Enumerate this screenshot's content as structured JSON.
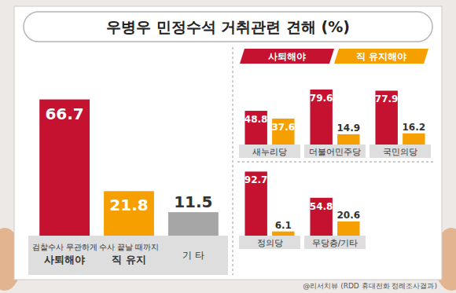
{
  "title": "우병우 민정수석 거취관련 견해 (%)",
  "source": "@리서치뷰 (RDD 휴대전화 정례조사결과)",
  "chart_data": [
    {
      "type": "bar",
      "categories": [
        "검찰수사 무관하게\n사퇴해야",
        "수사 끝날 때까지\n직 유지",
        "기 타"
      ],
      "values": [
        66.7,
        21.8,
        11.5
      ],
      "colors": [
        "#c41230",
        "#f5a000",
        "#a6a6a6"
      ],
      "ylim": [
        0,
        80
      ],
      "data_labels": true,
      "tick_labels": "x"
    },
    {
      "type": "bar",
      "categories": [
        "새누리당",
        "더불어민주당",
        "국민의당",
        "정의당",
        "무당층/기타"
      ],
      "series": [
        {
          "name": "사퇴해야",
          "color": "#c41230",
          "values": [
            48.8,
            79.6,
            77.9,
            92.7,
            54.8
          ]
        },
        {
          "name": "직 유지해야",
          "color": "#f5a000",
          "values": [
            37.6,
            14.9,
            16.2,
            6.1,
            20.6
          ]
        }
      ],
      "ylim": [
        0,
        100
      ],
      "legend": "top",
      "data_labels": true,
      "tick_labels": "x"
    }
  ]
}
